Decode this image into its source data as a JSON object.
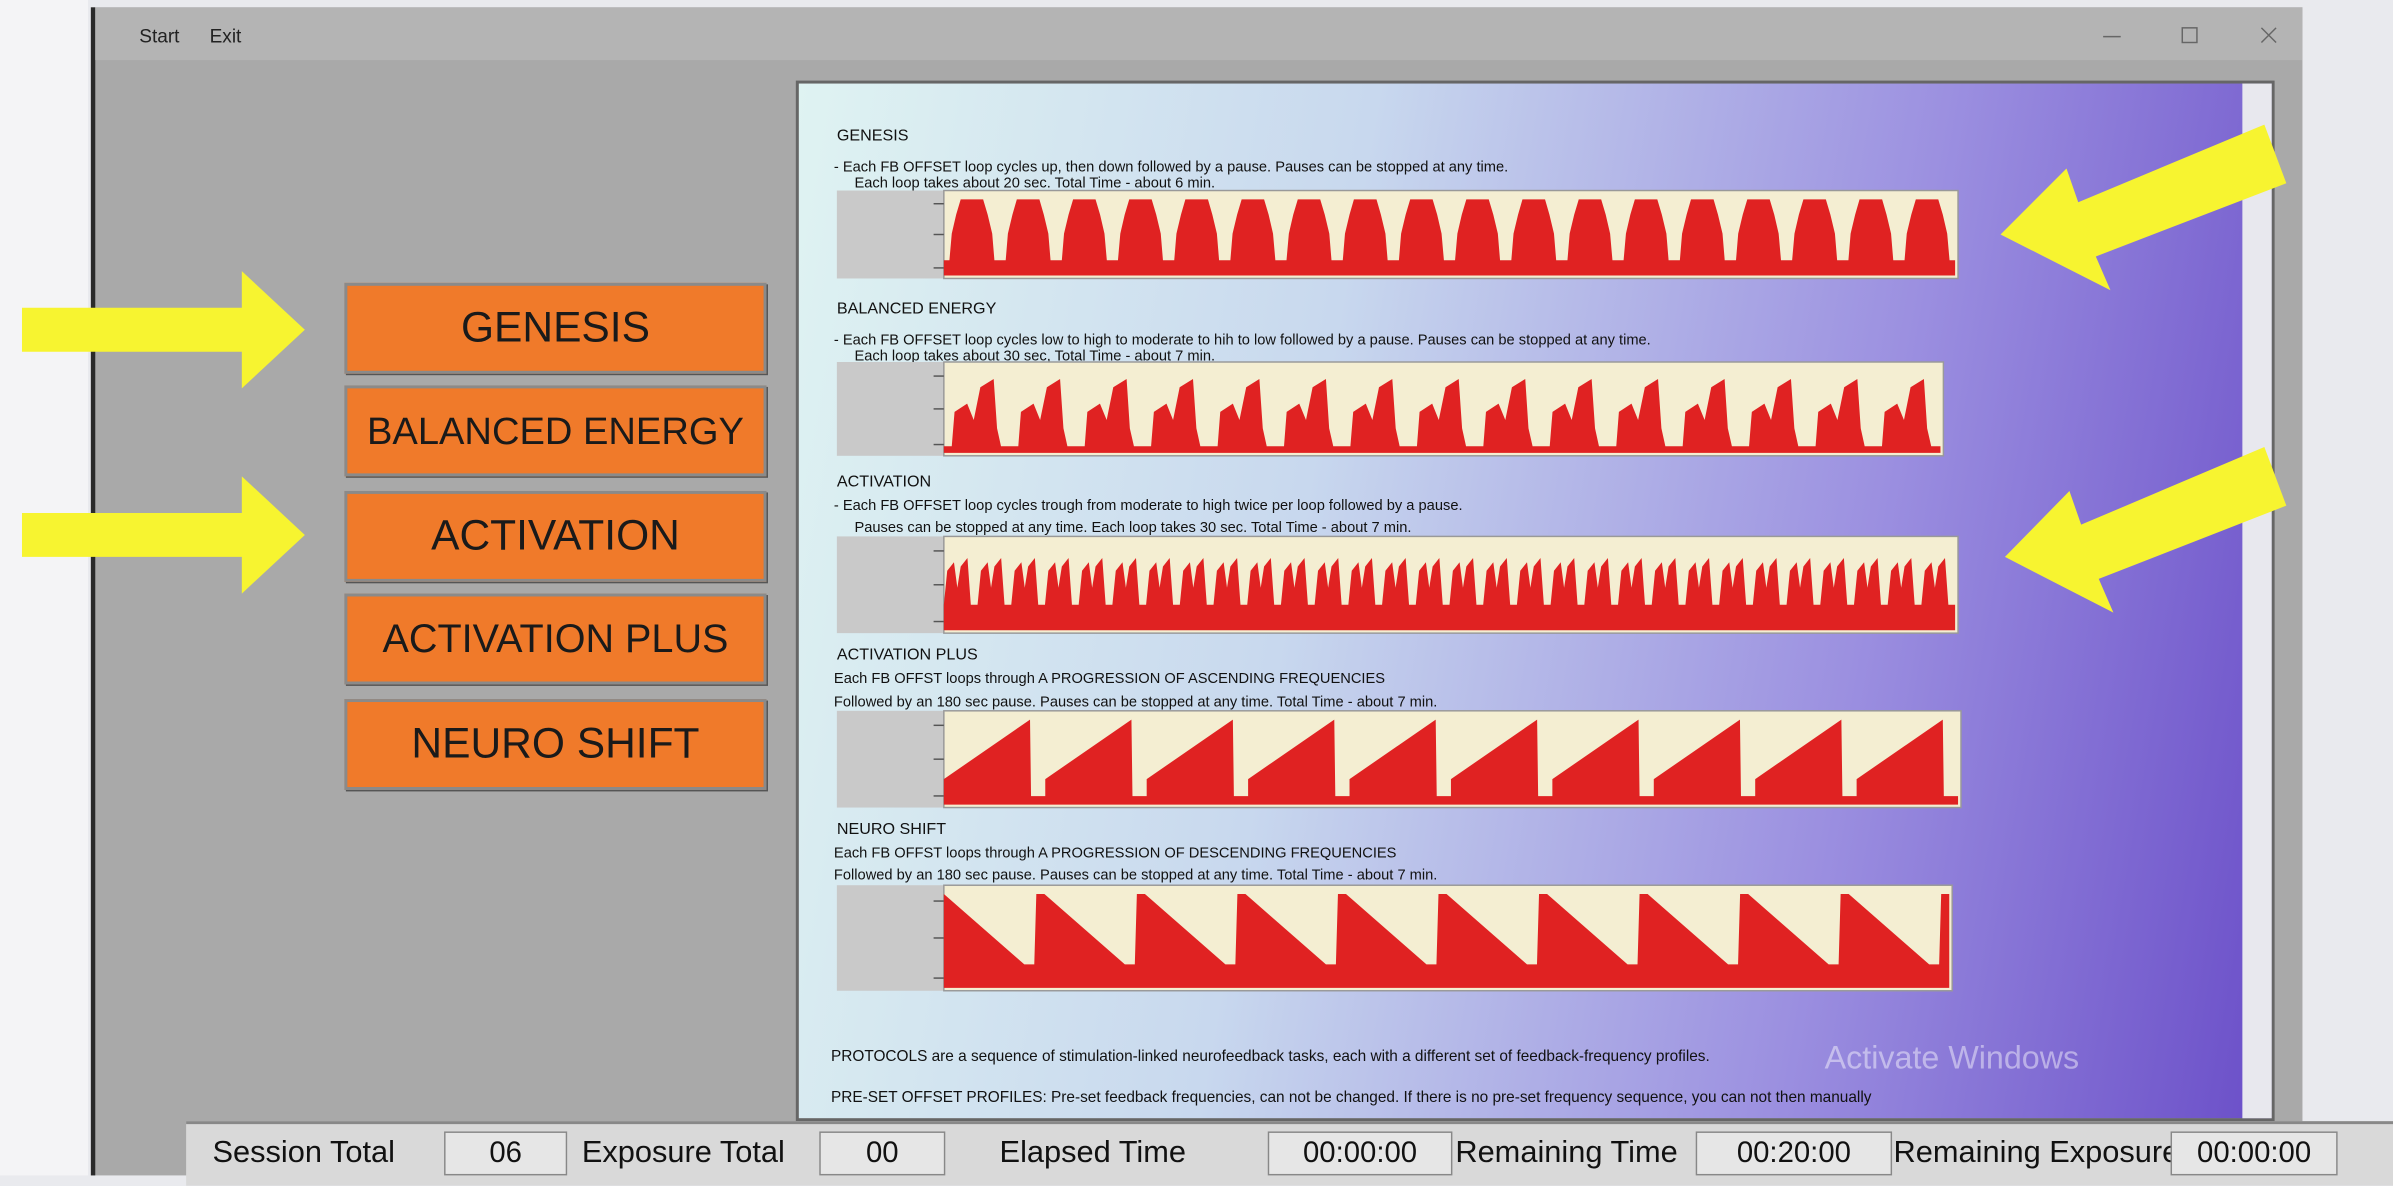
{
  "window": {
    "menu": [
      "Start",
      "Exit"
    ]
  },
  "buttons": [
    "GENESIS",
    "BALANCED ENERGY",
    "ACTIVATION",
    "ACTIVATION PLUS",
    "NEURO SHIFT"
  ],
  "protocols": [
    {
      "title": "GENESIS",
      "lines": [
        "- Each FB OFFSET loop cycles up, then down followed by a pause. Pauses can be stopped at any time.",
        "Each loop takes about 20 sec. Total Time - about 6 min."
      ]
    },
    {
      "title": "BALANCED ENERGY",
      "lines": [
        "- Each FB OFFSET loop cycles low to high to moderate to hih to low followed by a pause. Pauses can be stopped at any time.",
        "Each loop takes about 30 sec, Total Time - about 7 min."
      ]
    },
    {
      "title": "ACTIVATION",
      "lines": [
        "- Each FB OFFSET loop cycles trough from moderate to high twice per loop followed by a pause.",
        "Pauses can be stopped at any time. Each loop takes 30 sec. Total Time - about 7 min."
      ]
    },
    {
      "title": "ACTIVATION PLUS",
      "lines": [
        "Each FB OFFST loops through A PROGRESSION OF ASCENDING FREQUENCIES",
        "Followed by an 180 sec pause. Pauses can be stopped at any time. Total Time - about 7 min."
      ]
    },
    {
      "title": "NEURO SHIFT",
      "lines": [
        "Each FB OFFST loops through A PROGRESSION OF DESCENDING FREQUENCIES",
        "Followed by an 180 sec pause. Pauses can be stopped at any time. Total Time - about 7 min."
      ]
    }
  ],
  "footer_notes": [
    "PROTOCOLS are a sequence of stimulation-linked neurofeedback tasks, each with a different set of feedback-frequency profiles.",
    "PRE-SET OFFSET PROFILES: Pre-set feedback frequencies, can not be changed. If there is no pre-set frequency sequence, you can not then manually"
  ],
  "watermark": "Activate Windows",
  "status_bar": [
    {
      "label": "Session Total",
      "value": "06"
    },
    {
      "label": "Exposure Total",
      "value": "00"
    },
    {
      "label": "Elapsed Time",
      "value": "00:00:00"
    },
    {
      "label": "Remaining Time",
      "value": "00:20:00"
    },
    {
      "label": "Remaining Exposure",
      "value": "00:00:00"
    }
  ]
}
